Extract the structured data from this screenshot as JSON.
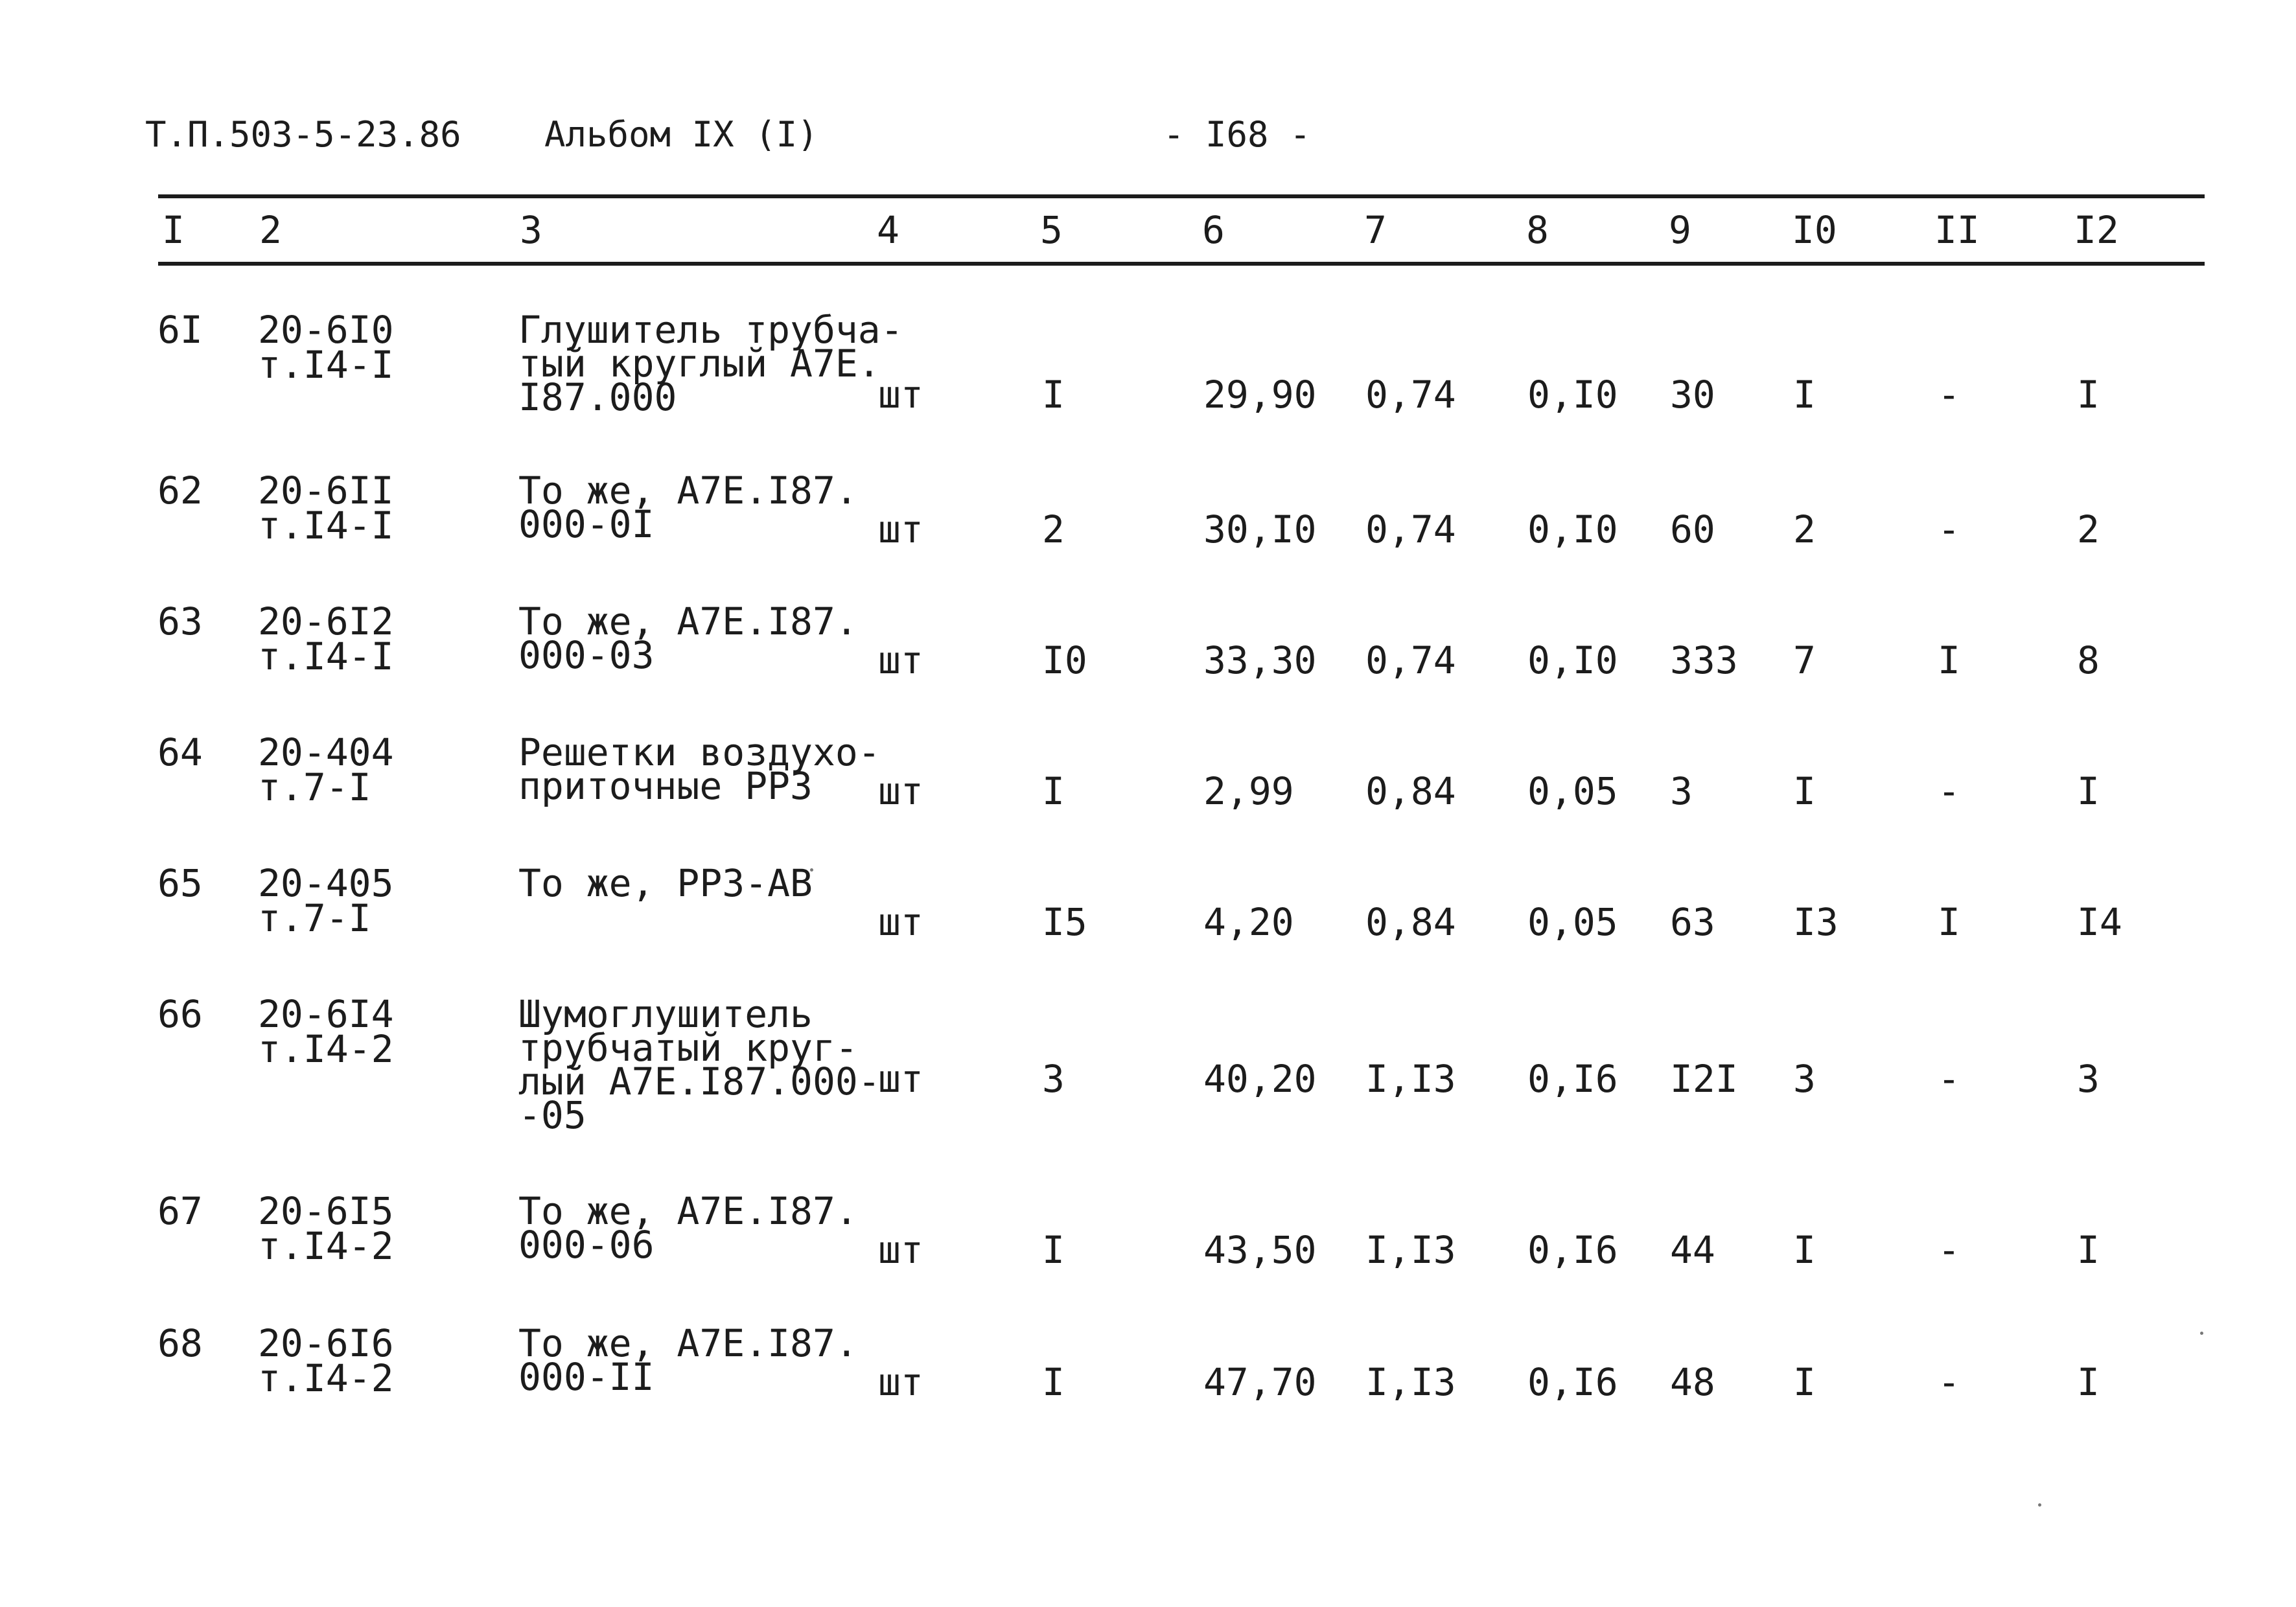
{
  "header": {
    "doc_code": "Т.П.503-5-23.86",
    "album": "Альбом IX (I)",
    "page_number": "- I68 -"
  },
  "table": {
    "columns": [
      "I",
      "2",
      "3",
      "4",
      "5",
      "6",
      "7",
      "8",
      "9",
      "I0",
      "II",
      "I2"
    ],
    "rows": [
      {
        "c1": "6I",
        "c2a": "20-6I0",
        "c2b": "т.I4-I",
        "c3": [
          "Глушитель трубча-",
          "тый круглый А7Е.",
          "I87.000"
        ],
        "c4": "шт",
        "c5": "I",
        "c6": "29,90",
        "c7": "0,74",
        "c8": "0,I0",
        "c9": "30",
        "c10": "I",
        "c11": "-",
        "c12": "I"
      },
      {
        "c1": "62",
        "c2a": "20-6II",
        "c2b": "т.I4-I",
        "c3": [
          "То же, А7Е.I87.",
          "000-0I"
        ],
        "c4": "шт",
        "c5": "2",
        "c6": "30,I0",
        "c7": "0,74",
        "c8": "0,I0",
        "c9": "60",
        "c10": "2",
        "c11": "-",
        "c12": "2"
      },
      {
        "c1": "63",
        "c2a": "20-6I2",
        "c2b": "т.I4-I",
        "c3": [
          "То же, А7Е.I87.",
          "000-03"
        ],
        "c4": "шт",
        "c5": "I0",
        "c6": "33,30",
        "c7": "0,74",
        "c8": "0,I0",
        "c9": "333",
        "c10": "7",
        "c11": "I",
        "c12": "8"
      },
      {
        "c1": "64",
        "c2a": "20-404",
        "c2b": "т.7-I",
        "c3": [
          "Решетки воздухо-",
          "приточные РР3"
        ],
        "c4": "шт",
        "c5": "I",
        "c6": "2,99",
        "c7": "0,84",
        "c8": "0,05",
        "c9": "3",
        "c10": "I",
        "c11": "-",
        "c12": "I"
      },
      {
        "c1": "65",
        "c2a": "20-405",
        "c2b": "т.7-I",
        "c3": [
          "То же, РР3-АВ"
        ],
        "c4": "шт",
        "c5": "I5",
        "c6": "4,20",
        "c7": "0,84",
        "c8": "0,05",
        "c9": "63",
        "c10": "I3",
        "c11": "I",
        "c12": "I4"
      },
      {
        "c1": "66",
        "c2a": "20-6I4",
        "c2b": "т.I4-2",
        "c3": [
          "Шумоглушитель",
          "трубчатый круг-",
          "лый А7Е.I87.000-",
          "-05"
        ],
        "c4": "шт",
        "c5": "3",
        "c6": "40,20",
        "c7": "I,I3",
        "c8": "0,I6",
        "c9": "I2I",
        "c10": "3",
        "c11": "-",
        "c12": "3"
      },
      {
        "c1": "67",
        "c2a": "20-6I5",
        "c2b": "т.I4-2",
        "c3": [
          "То же, А7Е.I87.",
          "000-06"
        ],
        "c4": "шт",
        "c5": "I",
        "c6": "43,50",
        "c7": "I,I3",
        "c8": "0,I6",
        "c9": "44",
        "c10": "I",
        "c11": "-",
        "c12": "I"
      },
      {
        "c1": "68",
        "c2a": "20-6I6",
        "c2b": "т.I4-2",
        "c3": [
          "То же, А7Е.I87.",
          "000-II"
        ],
        "c4": "шт",
        "c5": "I",
        "c6": "47,70",
        "c7": "I,I3",
        "c8": "0,I6",
        "c9": "48",
        "c10": "I",
        "c11": "-",
        "c12": "I"
      }
    ]
  }
}
